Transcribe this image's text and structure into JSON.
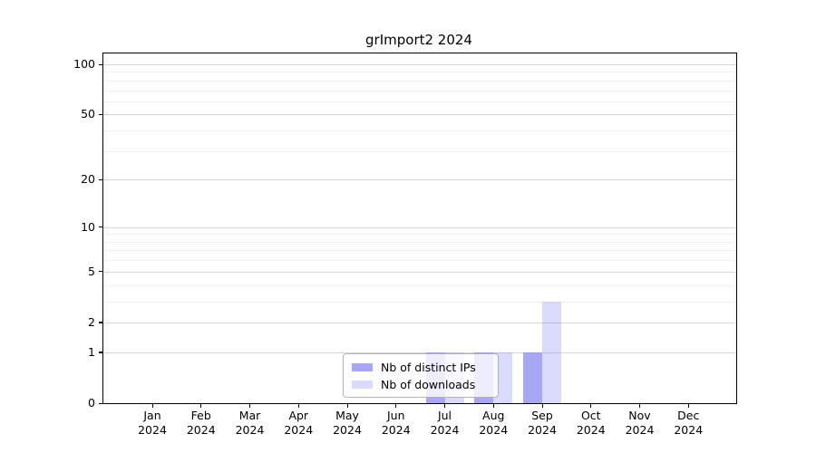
{
  "chart_data": {
    "type": "bar",
    "title": "grImport2 2024",
    "categories": [
      "Jan",
      "Feb",
      "Mar",
      "Apr",
      "May",
      "Jun",
      "Jul",
      "Aug",
      "Sep",
      "Oct",
      "Nov",
      "Dec"
    ],
    "year": "2024",
    "series": [
      {
        "name": "Nb of distinct IPs",
        "values": [
          0,
          0,
          0,
          0,
          0,
          0,
          1,
          1,
          1,
          0,
          0,
          0
        ],
        "color": "rgba(136,136,242,0.74)"
      },
      {
        "name": "Nb of downloads",
        "values": [
          0,
          0,
          0,
          0,
          0,
          0,
          1,
          1,
          3,
          0,
          0,
          0
        ],
        "color": "rgba(136,136,242,0.31)"
      }
    ],
    "y_axis": {
      "scale": "log1p",
      "max": 100,
      "tick_labels": [
        "100",
        "50",
        "20",
        "10",
        "5",
        "2",
        "1",
        "0"
      ],
      "tick_values": [
        100,
        50,
        20,
        10,
        5,
        2,
        1,
        0
      ],
      "major_grid_values": [
        1,
        2,
        5,
        10,
        20,
        50,
        100
      ],
      "minor_grid_values": [
        3,
        4,
        6,
        7,
        8,
        9,
        30,
        40,
        60,
        70,
        80,
        90
      ],
      "major_grid_color": "#d6d6d6",
      "minor_grid_color": "#f0f0f0"
    },
    "legend_position": "lower center",
    "grid": true
  }
}
